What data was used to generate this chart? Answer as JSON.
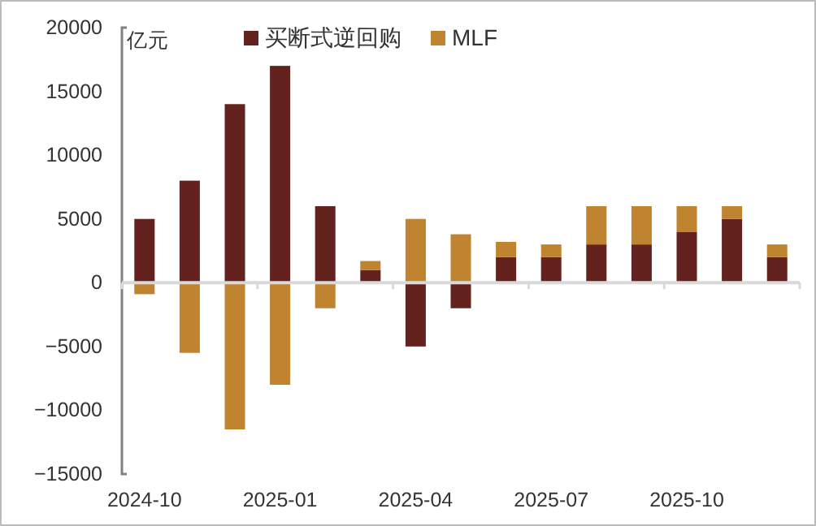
{
  "chart_data": {
    "type": "bar",
    "stacked": true,
    "ylabel": "亿元",
    "categories": [
      "2024-10",
      null,
      null,
      "2025-01",
      null,
      null,
      "2025-04",
      null,
      null,
      "2025-07",
      null,
      null,
      "2025-10",
      null,
      null
    ],
    "series": [
      {
        "name": "买断式逆回购",
        "color": "#64221f",
        "values": [
          5000,
          8000,
          14000,
          17000,
          6000,
          1000,
          -5000,
          -2000,
          2000,
          2000,
          3000,
          3000,
          4000,
          5000,
          2000
        ]
      },
      {
        "name": "MLF",
        "color": "#c08431",
        "values": [
          -900,
          -5500,
          -11500,
          -8000,
          -2000,
          700,
          5000,
          3800,
          1200,
          1000,
          3000,
          3000,
          2000,
          1000,
          1000
        ]
      }
    ],
    "ylim": [
      -15000,
      20000
    ],
    "yticks": [
      -15000,
      -10000,
      -5000,
      0,
      5000,
      10000,
      15000,
      20000
    ],
    "legend": "top"
  }
}
